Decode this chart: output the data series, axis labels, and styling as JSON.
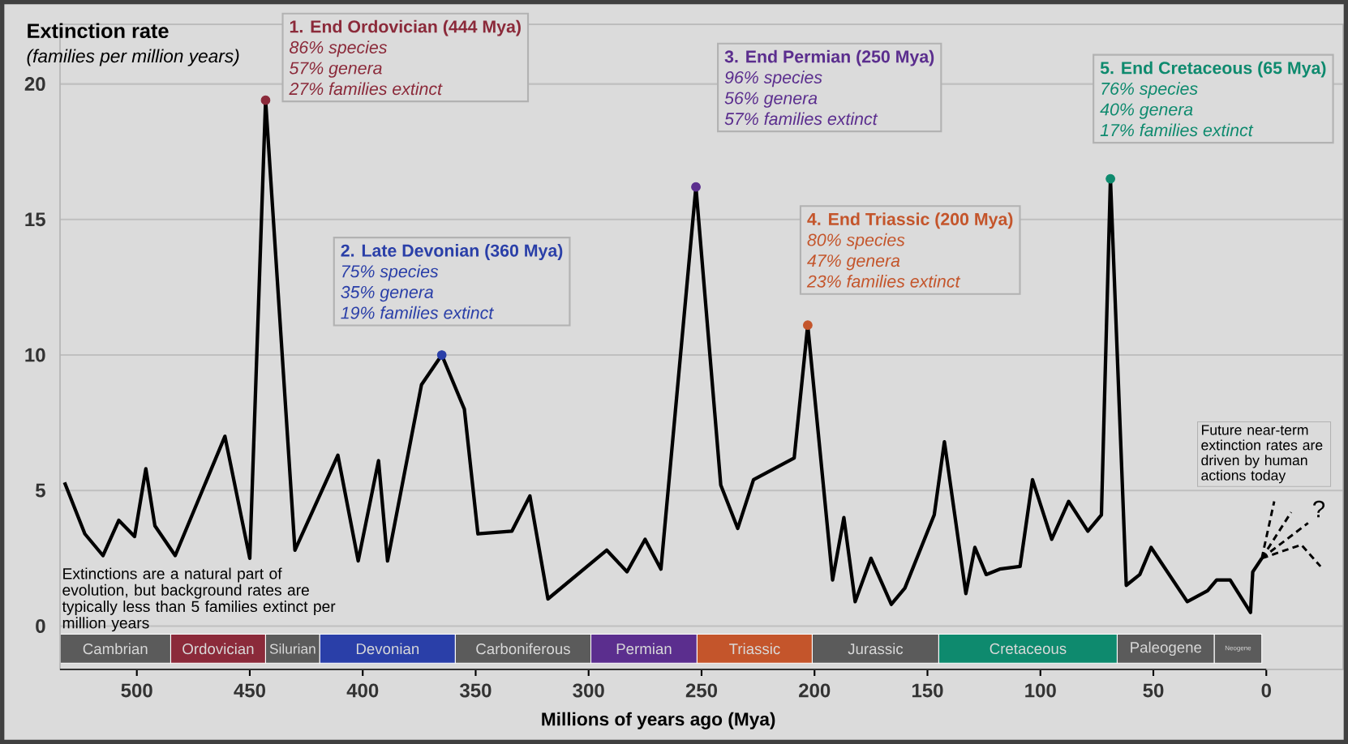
{
  "chart_data": {
    "type": "line",
    "ylabel": "Extinction rate",
    "xlabel": "Millions of years ago (Mya)",
    "xlim": [
      534,
      -34
    ],
    "ylim": [
      -1.6,
      22.2
    ],
    "xticks": [
      500,
      450,
      400,
      350,
      300,
      250,
      200,
      150,
      100,
      50,
      0
    ],
    "yticks": [
      0,
      5,
      10,
      15,
      20
    ],
    "grid": "y",
    "series": [
      {
        "x": [
          532,
          523,
          515,
          508,
          501,
          496,
          492,
          483,
          461,
          450,
          443,
          430,
          411,
          402,
          393,
          389,
          374,
          365,
          355,
          349,
          334,
          326,
          318,
          292,
          283,
          275,
          268,
          252.5,
          241.5,
          234,
          227,
          209,
          203,
          192,
          187,
          182,
          175,
          166,
          160,
          147,
          142.5,
          133,
          129,
          124,
          118,
          109,
          103.5,
          95,
          87.5,
          79,
          73,
          69,
          62,
          56,
          51,
          35,
          26,
          22,
          16,
          7,
          6,
          2
        ],
        "values": [
          5.3,
          3.4,
          2.6,
          3.9,
          3.3,
          5.8,
          3.7,
          2.6,
          7.0,
          2.5,
          19.4,
          2.8,
          6.3,
          2.4,
          6.1,
          2.4,
          8.9,
          10.0,
          8.0,
          3.4,
          3.5,
          4.8,
          1.0,
          2.8,
          2.0,
          3.2,
          2.1,
          16.2,
          5.2,
          3.6,
          5.4,
          6.2,
          11.1,
          1.7,
          4.0,
          0.9,
          2.5,
          0.8,
          1.4,
          4.1,
          6.8,
          1.2,
          2.9,
          1.9,
          2.1,
          2.2,
          5.4,
          3.2,
          4.6,
          3.5,
          4.1,
          16.5,
          1.5,
          1.9,
          2.9,
          0.9,
          1.3,
          1.7,
          1.7,
          0.5,
          2.0,
          2.5
        ],
        "color": "#000000",
        "line_style": "solid"
      },
      {
        "x": [
          2,
          -3.5
        ],
        "values": [
          2.5,
          4.6
        ],
        "color": "#000000",
        "line_style": "dashed"
      },
      {
        "x": [
          2,
          -11
        ],
        "values": [
          2.5,
          4.2
        ],
        "color": "#000000",
        "line_style": "dashed"
      },
      {
        "x": [
          2,
          -18.5
        ],
        "values": [
          2.5,
          3.8
        ],
        "color": "#000000",
        "line_style": "dashed"
      },
      {
        "x": [
          2,
          -15.5,
          -24
        ],
        "values": [
          2.5,
          3.0,
          2.2
        ],
        "color": "#000000",
        "line_style": "dashed"
      },
      {
        "type": "scatter",
        "x": [
          443,
          365,
          252.5,
          203,
          69
        ],
        "values": [
          19.4,
          10.0,
          16.2,
          11.1,
          16.5
        ],
        "colors": [
          "#8b2a3a",
          "#2a3fa8",
          "#5b2e8e",
          "#c4552b",
          "#0e8a6e"
        ]
      }
    ],
    "bands": [
      {
        "axis": "x",
        "from": 534,
        "to": 485,
        "label": "Cambrian",
        "color": "#5b5b5b"
      },
      {
        "axis": "x",
        "from": 485,
        "to": 443,
        "label": "Ordovician",
        "color": "#8b2a3a"
      },
      {
        "axis": "x",
        "from": 443,
        "to": 419,
        "label": "Silurian",
        "color": "#5b5b5b"
      },
      {
        "axis": "x",
        "from": 419,
        "to": 359,
        "label": "Devonian",
        "color": "#2a3fa8"
      },
      {
        "axis": "x",
        "from": 359,
        "to": 299,
        "label": "Carboniferous",
        "color": "#5b5b5b"
      },
      {
        "axis": "x",
        "from": 299,
        "to": 252,
        "label": "Permian",
        "color": "#5b2e8e"
      },
      {
        "axis": "x",
        "from": 252,
        "to": 201,
        "label": "Triassic",
        "color": "#c4552b"
      },
      {
        "axis": "x",
        "from": 201,
        "to": 145,
        "label": "Jurassic",
        "color": "#5b5b5b"
      },
      {
        "axis": "x",
        "from": 145,
        "to": 66,
        "label": "Cretaceous",
        "color": "#0e8a6e"
      },
      {
        "axis": "x",
        "from": 66,
        "to": 23,
        "label": "Paleogene",
        "color": "#5b5b5b"
      },
      {
        "axis": "x",
        "from": 23,
        "to": 2,
        "label": "Neogene",
        "color": "#5b5b5b"
      }
    ],
    "annotations": [
      "(families per million years)",
      "Extinctions are a natural part of evolution, but background rates are typically less than 5 families extinct per million years",
      "Future near-term extinction rates are driven by human actions today",
      "?",
      "1. End Ordovician (444 Mya)",
      "86% species",
      "57% genera",
      "27% families extinct",
      "2. Late Devonian (360 Mya)",
      "75% species",
      "35% genera",
      "19% families extinct",
      "3. End Permian (250 Mya)",
      "96% species",
      "56% genera",
      "57% families extinct",
      "4. End Triassic (200 Mya)",
      "80% species",
      "47% genera",
      "23% families extinct",
      "5. End Cretaceous (65 Mya)",
      "76% species",
      "40% genera",
      "17% families extinct"
    ]
  }
}
